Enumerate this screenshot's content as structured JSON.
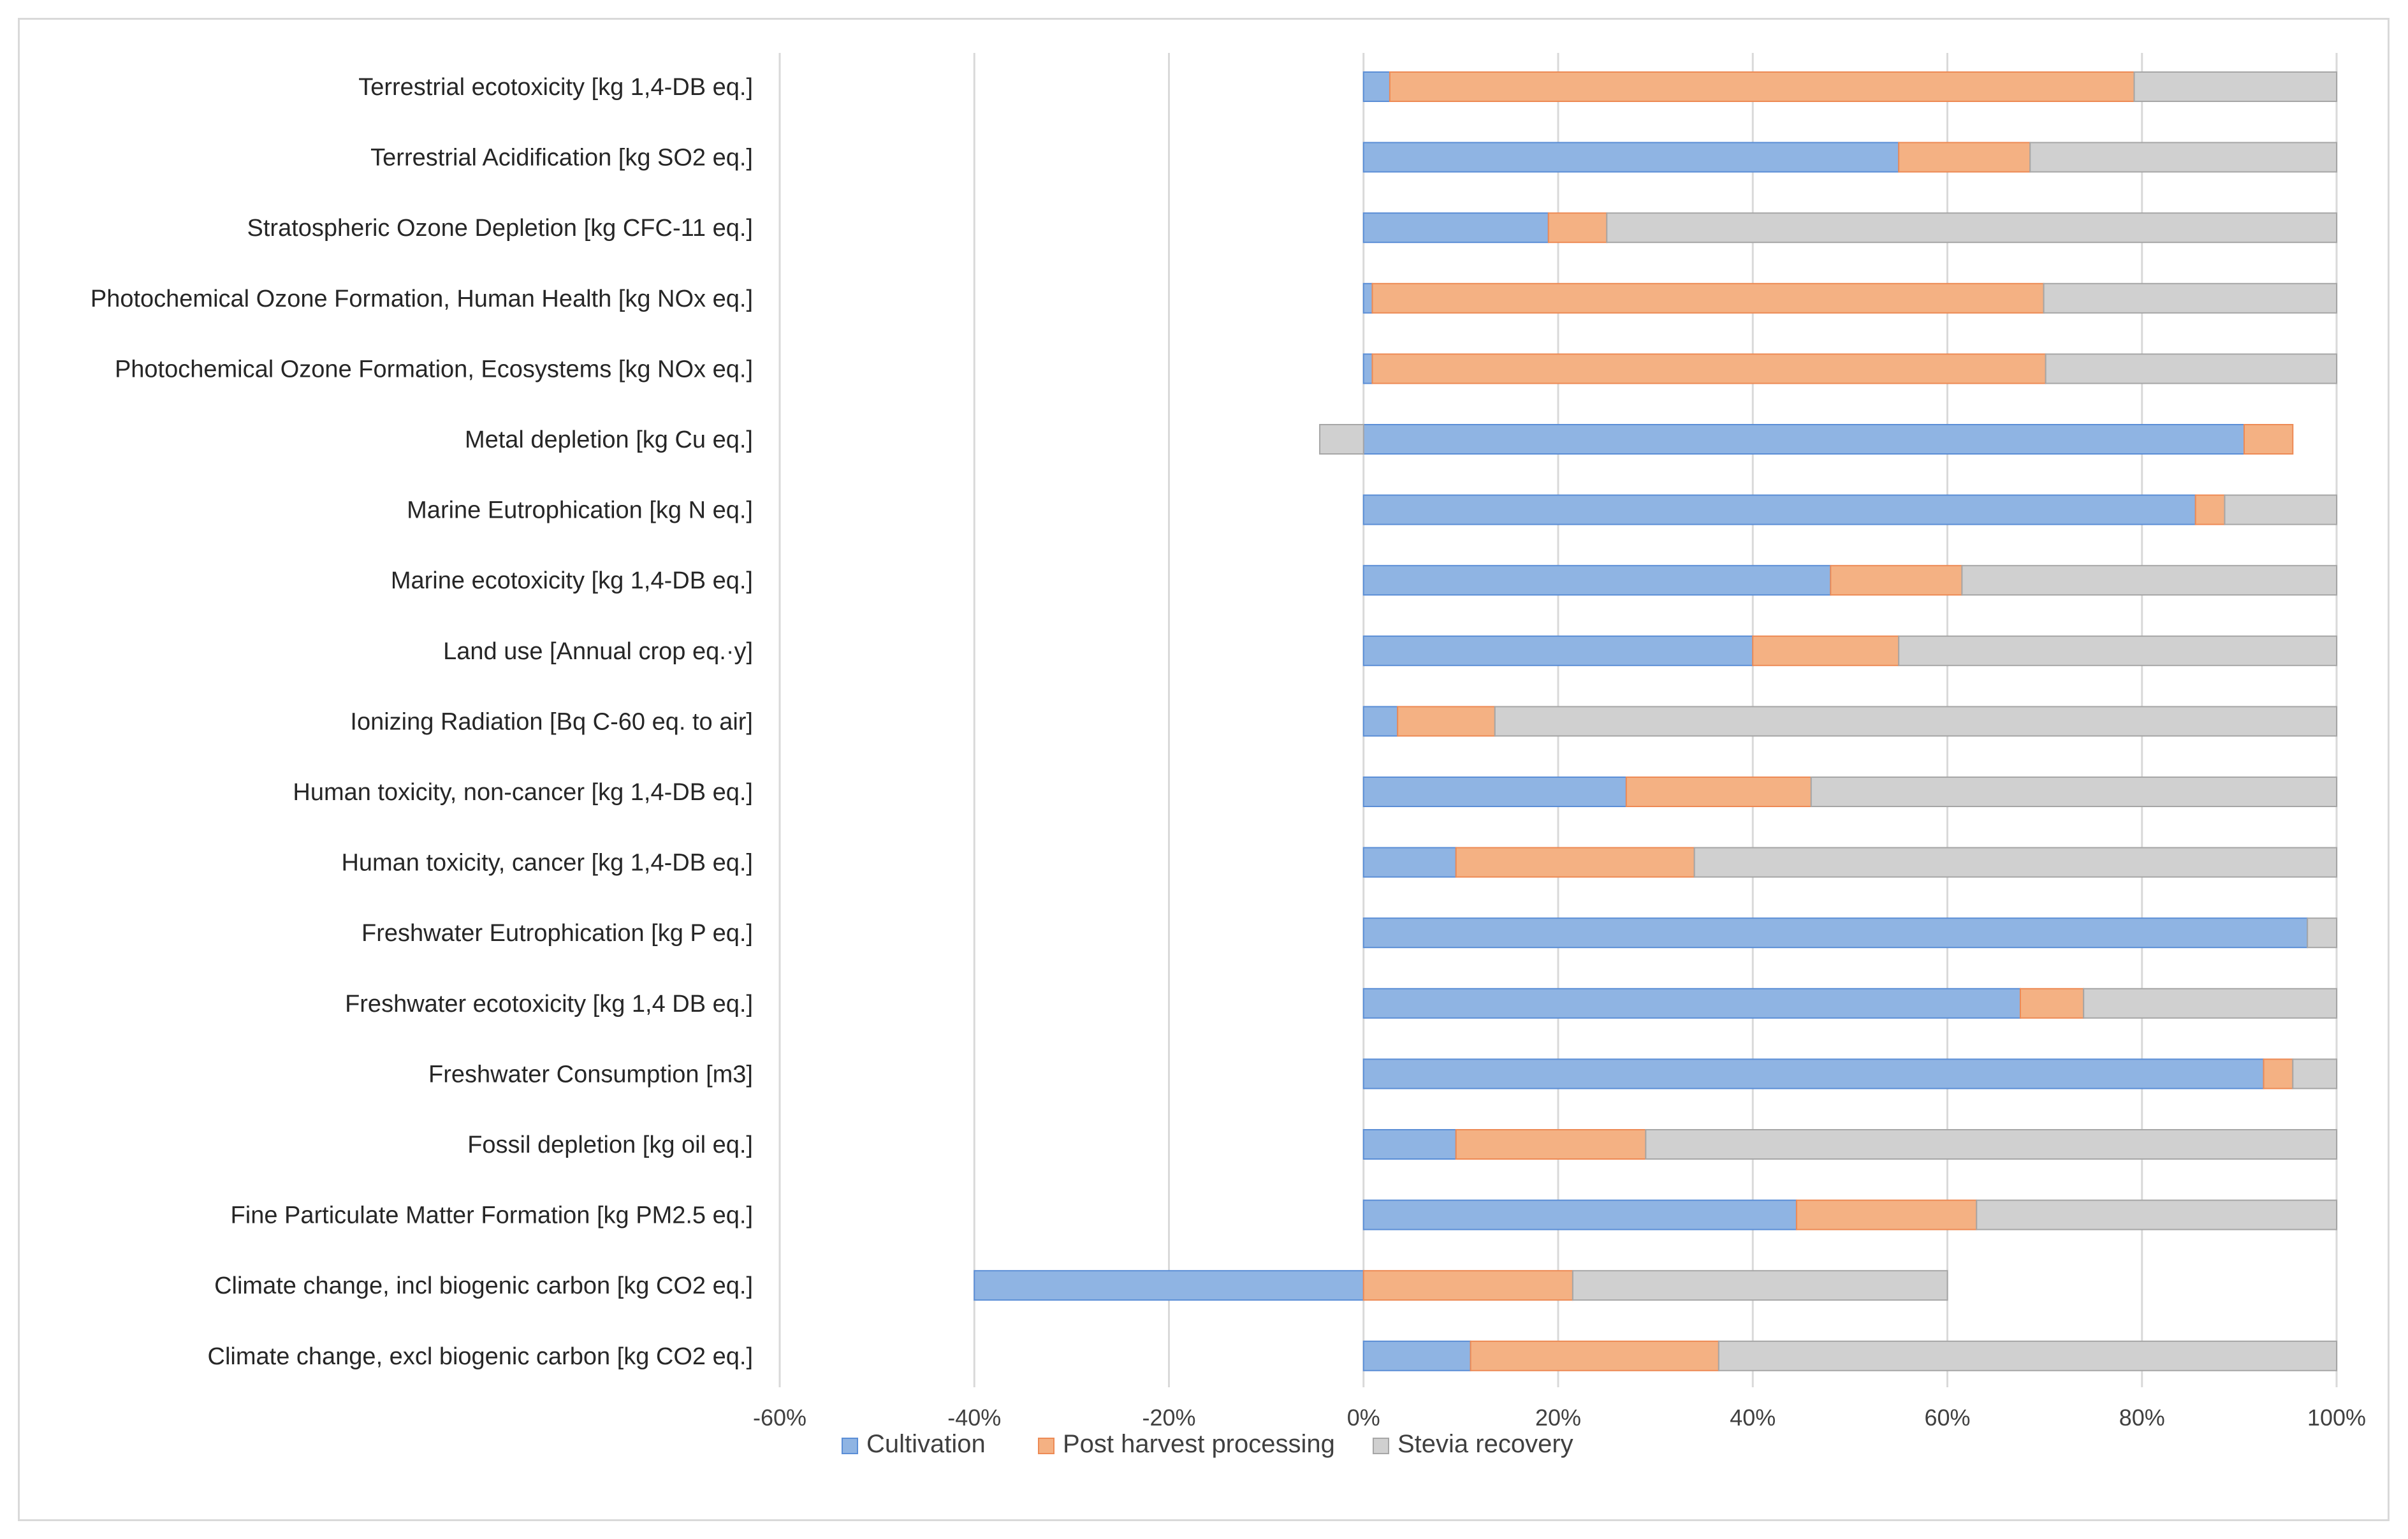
{
  "chart_data": {
    "type": "bar",
    "orientation": "horizontal",
    "stacked": true,
    "title": "",
    "xlabel": "",
    "ylabel": "",
    "xlim": [
      -60,
      100
    ],
    "x_ticks": [
      -60,
      -40,
      -20,
      0,
      20,
      40,
      60,
      80,
      100
    ],
    "x_tick_labels": [
      "-60%",
      "-40%",
      "-20%",
      "0%",
      "20%",
      "40%",
      "60%",
      "80%",
      "100%"
    ],
    "grid": true,
    "legend_position": "bottom",
    "categories": [
      "Terrestrial ecotoxicity [kg 1,4-DB eq.]",
      "Terrestrial Acidification [kg SO2 eq.]",
      "Stratospheric Ozone Depletion [kg CFC-11 eq.]",
      "Photochemical Ozone Formation, Human Health [kg NOx eq.]",
      "Photochemical Ozone Formation, Ecosystems [kg NOx eq.]",
      "Metal depletion [kg Cu eq.]",
      "Marine Eutrophication [kg N eq.]",
      "Marine ecotoxicity [kg 1,4-DB eq.]",
      "Land use [Annual crop eq.·y]",
      "Ionizing Radiation [Bq C-60 eq. to air]",
      "Human toxicity, non-cancer [kg 1,4-DB eq.]",
      "Human toxicity, cancer [kg 1,4-DB eq.]",
      "Freshwater Eutrophication [kg P eq.]",
      "Freshwater ecotoxicity [kg 1,4 DB eq.]",
      "Freshwater Consumption [m3]",
      "Fossil depletion [kg oil eq.]",
      "Fine Particulate Matter Formation [kg PM2.5 eq.]",
      "Climate change, incl biogenic carbon [kg CO2 eq.]",
      "Climate change, excl biogenic carbon [kg CO2 eq.]"
    ],
    "series": [
      {
        "name": "Cultivation",
        "color": "#8fb4e3",
        "edge": "#5b8ed6",
        "values": [
          2.7,
          55,
          19,
          0.9,
          0.9,
          90.5,
          85.5,
          48,
          40,
          3.5,
          27,
          9.5,
          97,
          67.5,
          92.5,
          9.5,
          44.5,
          -40,
          11
        ]
      },
      {
        "name": "Post harvest processing",
        "color": "#f4b183",
        "edge": "#ed8a55",
        "values": [
          76.5,
          13.5,
          6,
          69,
          69.2,
          5,
          3,
          13.5,
          15,
          10,
          19,
          24.5,
          0,
          6.5,
          3,
          19.5,
          18.5,
          21.5,
          25.5
        ]
      },
      {
        "name": "Stevia recovery",
        "color": "#d0d0d0",
        "edge": "#a6a6a6",
        "values": [
          20.8,
          31.5,
          75,
          30.1,
          29.9,
          -4.5,
          11.5,
          38.5,
          45,
          86.5,
          54,
          66,
          3,
          26,
          4.5,
          71,
          37,
          38.5,
          63.5
        ]
      }
    ]
  }
}
